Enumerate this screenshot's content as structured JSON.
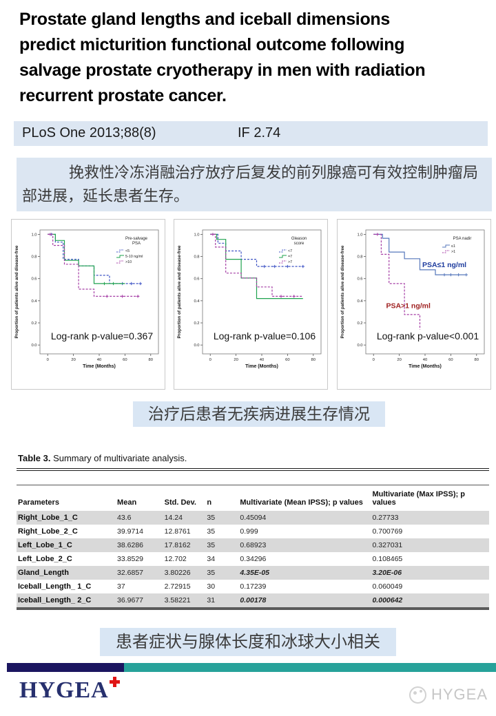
{
  "title": {
    "lines": [
      " Prostate gland lengths and iceball dimensions",
      "predict micturition functional outcome following",
      "salvage prostate cryotherapy in men with radiation",
      "recurrent prostate cancer."
    ]
  },
  "journal": {
    "citation": "PLoS One 2013;88(8)",
    "impact_factor": "IF 2.74"
  },
  "summary_cn": "挽救性冷冻消融治疗放疗后复发的前列腺癌可有效控制肿瘤局部进展，延长患者生存。",
  "caption_survival": "治疗后患者无疾病进展生存情况",
  "caption_table": "患者症状与腺体长度和冰球大小相关",
  "colors": {
    "light_blue_box": "#dce6f2",
    "navy": "#1b1660",
    "teal": "#27a29a",
    "shaded_row": "#d9d9d9",
    "km_blue_dashed": "#3c52c4",
    "km_green": "#1ea24e",
    "km_purple": "#a43ba4",
    "km_blue_solid": "#5577bb",
    "label_blue": "#1f3d9e",
    "label_red": "#9e1d1d",
    "brand_red": "#e01515"
  },
  "table": {
    "title_bold": "Table 3.",
    "title_rest": " Summary of multivariate analysis.",
    "columns": [
      "Parameters",
      "Mean",
      "Std. Dev.",
      "n",
      "Multivariate (Mean IPSS); p values",
      "Multivariate (Max IPSS); p values"
    ],
    "col_widths": [
      "21%",
      "10%",
      "9%",
      "7%",
      "28%",
      "25%"
    ],
    "rows": [
      {
        "param": "Right_Lobe_1_C",
        "mean": "43.6",
        "std": "14.24",
        "n": "35",
        "p_mean": "0.45094",
        "p_max": "0.27733",
        "sig": false
      },
      {
        "param": "Right_Lobe_2_C",
        "mean": "39.9714",
        "std": "12.8761",
        "n": "35",
        "p_mean": "0.999",
        "p_max": "0.700769",
        "sig": false
      },
      {
        "param": "Left_Lobe_1_C",
        "mean": "38.6286",
        "std": "17.8162",
        "n": "35",
        "p_mean": "0.68923",
        "p_max": "0.327031",
        "sig": false
      },
      {
        "param": "Left_Lobe_2_C",
        "mean": "33.8529",
        "std": "12.702",
        "n": "34",
        "p_mean": "0.34296",
        "p_max": "0.108465",
        "sig": false
      },
      {
        "param": "Gland_Length",
        "mean": "32.6857",
        "std": "3.80226",
        "n": "35",
        "p_mean": "4.35E-05",
        "p_max": "3.20E-06",
        "sig": true
      },
      {
        "param": "Iceball_Length_ 1_C",
        "mean": "37",
        "std": "2.72915",
        "n": "30",
        "p_mean": "0.17239",
        "p_max": "0.060049",
        "sig": false
      },
      {
        "param": "Iceball_Length_ 2_C",
        "mean": "36.9677",
        "std": "3.58221",
        "n": "31",
        "p_mean": "0.00178",
        "p_max": "0.000642",
        "sig": true
      }
    ]
  },
  "chart_data": [
    {
      "type": "line",
      "subtype": "kaplan-meier-step",
      "name": "km-chart-presalvage-psa",
      "legend_title_lines": [
        "Pre-salvage",
        "PSA"
      ],
      "legend_position": "top-right",
      "xlabel": "Time (Months)",
      "ylabel": "Proportion of patients alive and disease-free",
      "xlim": [
        0,
        80
      ],
      "ylim": [
        0.0,
        1.0
      ],
      "grid": false,
      "xticks": [
        0,
        20,
        40,
        60,
        80
      ],
      "yticks": [
        0.0,
        0.2,
        0.4,
        0.6,
        0.8,
        1.0
      ],
      "annotation": "Log-rank p-value=0.367",
      "series": [
        {
          "name": "<5",
          "color": "#3c52c4",
          "dash": true,
          "points": [
            [
              0,
              1.0
            ],
            [
              6,
              1.0
            ],
            [
              6,
              0.93
            ],
            [
              12,
              0.93
            ],
            [
              12,
              0.775
            ],
            [
              24,
              0.775
            ],
            [
              24,
              0.715
            ],
            [
              36,
              0.715
            ],
            [
              36,
              0.63
            ],
            [
              48,
              0.63
            ],
            [
              48,
              0.555
            ],
            [
              72,
              0.555
            ]
          ],
          "censors": [
            [
              3,
              1.0
            ],
            [
              58,
              0.555
            ],
            [
              65,
              0.555
            ],
            [
              72,
              0.555
            ]
          ]
        },
        {
          "name": "5-10 ng/ml",
          "color": "#1ea24e",
          "dash": false,
          "points": [
            [
              0,
              1.0
            ],
            [
              6,
              1.0
            ],
            [
              6,
              0.945
            ],
            [
              13,
              0.945
            ],
            [
              13,
              0.765
            ],
            [
              24,
              0.765
            ],
            [
              24,
              0.715
            ],
            [
              36,
              0.715
            ],
            [
              36,
              0.555
            ],
            [
              60,
              0.555
            ]
          ],
          "censors": [
            [
              44,
              0.555
            ],
            [
              51,
              0.555
            ]
          ]
        },
        {
          "name": ">10",
          "color": "#a43ba4",
          "dash": true,
          "points": [
            [
              0,
              1.0
            ],
            [
              4,
              1.0
            ],
            [
              4,
              0.9
            ],
            [
              13,
              0.9
            ],
            [
              13,
              0.73
            ],
            [
              24,
              0.73
            ],
            [
              24,
              0.505
            ],
            [
              36,
              0.505
            ],
            [
              36,
              0.44
            ],
            [
              72,
              0.44
            ]
          ],
          "censors": [
            [
              2,
              1.0
            ],
            [
              46,
              0.44
            ],
            [
              58,
              0.44
            ],
            [
              70,
              0.44
            ]
          ]
        }
      ]
    },
    {
      "type": "line",
      "subtype": "kaplan-meier-step",
      "name": "km-chart-gleason-score",
      "legend_title_lines": [
        "Gleason",
        "score"
      ],
      "legend_position": "top-right",
      "xlabel": "Time (Months)",
      "ylabel": "Proportion of patients alive and disease-free",
      "xlim": [
        0,
        80
      ],
      "ylim": [
        0.0,
        1.0
      ],
      "grid": false,
      "xticks": [
        0,
        20,
        40,
        60,
        80
      ],
      "yticks": [
        0.0,
        0.2,
        0.4,
        0.6,
        0.8,
        1.0
      ],
      "annotation": "Log-rank p-value=0.106",
      "series": [
        {
          "name": "<7",
          "color": "#3c52c4",
          "dash": true,
          "points": [
            [
              0,
              1.0
            ],
            [
              6,
              1.0
            ],
            [
              6,
              0.92
            ],
            [
              12,
              0.92
            ],
            [
              12,
              0.85
            ],
            [
              24,
              0.85
            ],
            [
              24,
              0.775
            ],
            [
              36,
              0.775
            ],
            [
              36,
              0.71
            ],
            [
              72,
              0.71
            ]
          ],
          "censors": [
            [
              42,
              0.71
            ],
            [
              50,
              0.71
            ],
            [
              60,
              0.71
            ],
            [
              72,
              0.71
            ]
          ]
        },
        {
          "name": "=7",
          "color": "#1ea24e",
          "dash": false,
          "points": [
            [
              0,
              1.0
            ],
            [
              5,
              1.0
            ],
            [
              5,
              0.955
            ],
            [
              12,
              0.955
            ],
            [
              12,
              0.775
            ],
            [
              24,
              0.775
            ],
            [
              24,
              0.605
            ],
            [
              36,
              0.605
            ],
            [
              36,
              0.42
            ],
            [
              72,
              0.42
            ]
          ],
          "censors": []
        },
        {
          "name": ">7",
          "color": "#a43ba4",
          "dash": true,
          "points": [
            [
              0,
              1.0
            ],
            [
              4,
              1.0
            ],
            [
              4,
              0.885
            ],
            [
              12,
              0.885
            ],
            [
              12,
              0.65
            ],
            [
              24,
              0.65
            ],
            [
              24,
              0.605
            ],
            [
              36,
              0.605
            ],
            [
              36,
              0.525
            ],
            [
              48,
              0.525
            ],
            [
              48,
              0.44
            ],
            [
              72,
              0.44
            ]
          ],
          "censors": [
            [
              2,
              1.0
            ],
            [
              55,
              0.44
            ],
            [
              65,
              0.44
            ]
          ]
        }
      ]
    },
    {
      "type": "line",
      "subtype": "kaplan-meier-step",
      "name": "km-chart-psa-nadir",
      "legend_title_lines": [
        "PSA nadir"
      ],
      "legend_position": "top-right",
      "xlabel": "Time (Months)",
      "ylabel": "Proportion of patients alive and disease-free",
      "xlim": [
        0,
        80
      ],
      "ylim": [
        0.0,
        1.0
      ],
      "grid": false,
      "xticks": [
        0,
        20,
        40,
        60,
        80
      ],
      "yticks": [
        0.0,
        0.2,
        0.4,
        0.6,
        0.8,
        1.0
      ],
      "annotation": "Log-rank p-value<0.001",
      "labels": [
        {
          "text": "PSA≤1 ng/ml",
          "x": 55,
          "y": 0.705,
          "color": "#1f3d9e"
        },
        {
          "text": "PSA>1 ng/ml",
          "x": 27,
          "y": 0.335,
          "color": "#9e1d1d"
        }
      ],
      "series": [
        {
          "name": "≤1",
          "color": "#5577bb",
          "dash": false,
          "points": [
            [
              0,
              1.0
            ],
            [
              7,
              1.0
            ],
            [
              7,
              0.965
            ],
            [
              12,
              0.965
            ],
            [
              12,
              0.84
            ],
            [
              24,
              0.84
            ],
            [
              24,
              0.78
            ],
            [
              36,
              0.78
            ],
            [
              36,
              0.68
            ],
            [
              48,
              0.68
            ],
            [
              48,
              0.635
            ],
            [
              72,
              0.635
            ]
          ],
          "censors": [
            [
              55,
              0.635
            ],
            [
              60,
              0.635
            ],
            [
              66,
              0.635
            ],
            [
              72,
              0.635
            ]
          ]
        },
        {
          "name": ">1",
          "color": "#a43ba4",
          "dash": true,
          "points": [
            [
              0,
              1.0
            ],
            [
              6,
              1.0
            ],
            [
              6,
              0.82
            ],
            [
              12,
              0.82
            ],
            [
              12,
              0.555
            ],
            [
              24,
              0.555
            ],
            [
              24,
              0.275
            ],
            [
              36,
              0.275
            ],
            [
              36,
              0.14
            ]
          ],
          "censors": [
            [
              3,
              1.0
            ]
          ]
        }
      ]
    }
  ],
  "footer": {
    "brand": "HYGEA",
    "watermark": "HYGEA"
  }
}
